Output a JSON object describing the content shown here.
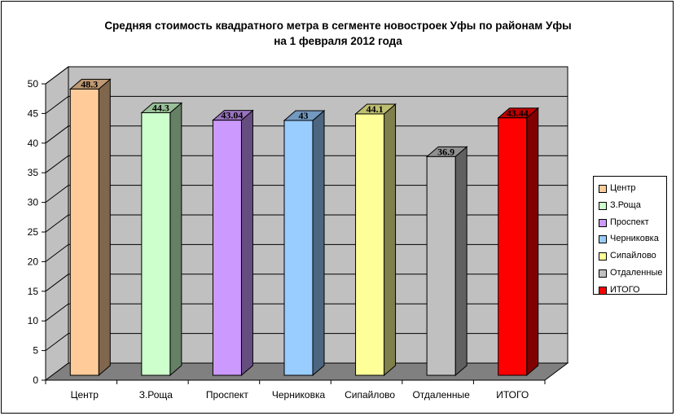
{
  "chart_data": {
    "type": "bar",
    "title": [
      "Средняя стоимость квадратного метра в сегменте новостроек Уфы по районам Уфы",
      "на 1 февраля 2012 года"
    ],
    "categories": [
      "Центр",
      "З.Роща",
      "Проспект",
      "Черниковка",
      "Сипайлово",
      "Отдаленные",
      "ИТОГО"
    ],
    "values": [
      48.3,
      44.3,
      43.04,
      43,
      44.1,
      36.9,
      43.44
    ],
    "data_labels": [
      "48.3",
      "44.3",
      "43.04",
      "43",
      "44.1",
      "36.9",
      "43.44"
    ],
    "colors": [
      "#FFCC99",
      "#CCFFCC",
      "#CC99FF",
      "#99CCFF",
      "#FFFF99",
      "#C0C0C0",
      "#FF0000"
    ],
    "yticks": [
      "0",
      "5",
      "10",
      "15",
      "20",
      "25",
      "30",
      "35",
      "40",
      "45",
      "50"
    ],
    "ylim": [
      0,
      50
    ],
    "legend_position": "right",
    "grid": true,
    "wall_color": "#C0C0C0",
    "floor_color": "#808080"
  }
}
